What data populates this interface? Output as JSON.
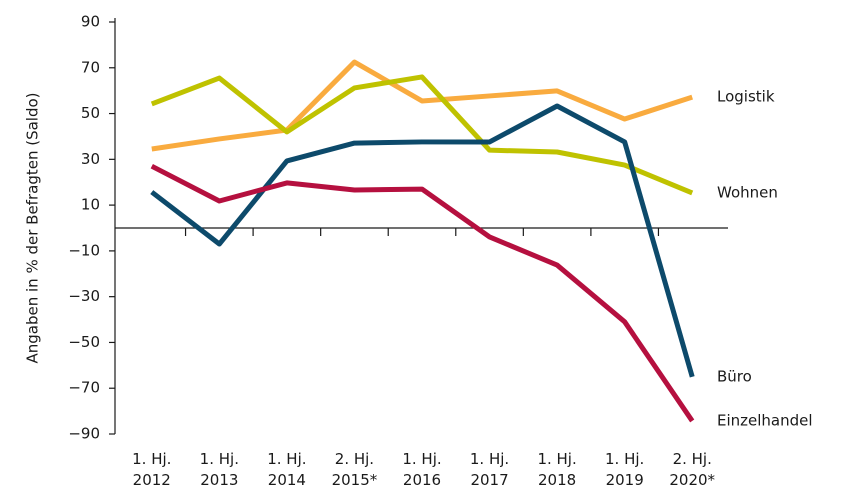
{
  "chart_data": {
    "type": "line",
    "y_label": "Angaben in % der Befragten (Saldo)",
    "categories": [
      "1. Hj.\n2012",
      "1. Hj.\n2013",
      "1. Hj.\n2014",
      "2. Hj.\n2015*",
      "1. Hj.\n2016",
      "1. Hj.\n2017",
      "1. Hj.\n2018",
      "1. Hj.\n2019",
      "2. Hj.\n2020*"
    ],
    "series": [
      {
        "name": "Logistik",
        "color": "#f9ab3f",
        "values": [
          34.5,
          38.9,
          42.8,
          72.5,
          55.5,
          57.7,
          59.9,
          47.6,
          57.2
        ]
      },
      {
        "name": "Wohnen",
        "color": "#bfc200",
        "values": [
          54.2,
          65.5,
          42,
          61.2,
          66,
          34,
          33.2,
          27.5,
          15.3
        ]
      },
      {
        "name": "Büro",
        "color": "#0d4a6b",
        "values": [
          15.7,
          -7,
          29.3,
          37.1,
          37.6,
          37.6,
          53.3,
          37.6,
          -65
        ]
      },
      {
        "name": "Einzelhandel",
        "color": "#b5103f",
        "values": [
          27,
          11.8,
          19.7,
          16.6,
          17,
          -3.9,
          -16.2,
          -41,
          -84.3
        ]
      }
    ],
    "ylim": [
      -90,
      90
    ],
    "yticks": [
      {
        "value": -90,
        "label": "−90"
      },
      {
        "value": -70,
        "label": "−70"
      },
      {
        "value": -50,
        "label": "−50"
      },
      {
        "value": -30,
        "label": "−30"
      },
      {
        "value": -10,
        "label": "−10"
      },
      10,
      30,
      50,
      70,
      90
    ],
    "legend": "line-end"
  }
}
